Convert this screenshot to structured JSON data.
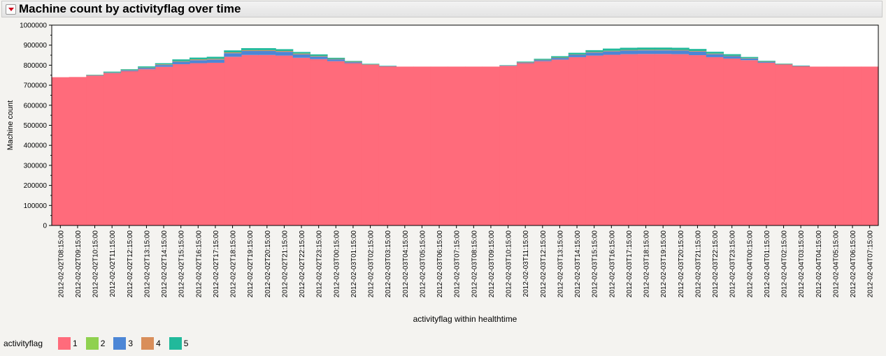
{
  "title": "Machine count by activityflag over time",
  "legend": {
    "title": "activityflag",
    "items": [
      {
        "label": "1",
        "color": "#ff6b7b"
      },
      {
        "label": "2",
        "color": "#8fd14f"
      },
      {
        "label": "3",
        "color": "#4c86d6"
      },
      {
        "label": "4",
        "color": "#d98e5a"
      },
      {
        "label": "5",
        "color": "#21b99b"
      }
    ]
  },
  "chart_data": {
    "type": "area",
    "title": "Machine count by activityflag over time",
    "xlabel": "activityflag within healthtime",
    "ylabel": "Machine count",
    "ylim": [
      0,
      1000000
    ],
    "yticks": [
      "1000000",
      "900000",
      "800000",
      "700000",
      "600000",
      "500000",
      "400000",
      "300000",
      "200000",
      "100000",
      "0"
    ],
    "categories": [
      "2012-02-02T08:15:00",
      "2012-02-02T09:15:00",
      "2012-02-02T10:15:00",
      "2012-02-02T11:15:00",
      "2012-02-02T12:15:00",
      "2012-02-02T13:15:00",
      "2012-02-02T14:15:00",
      "2012-02-02T15:15:00",
      "2012-02-02T16:15:00",
      "2012-02-02T17:15:00",
      "2012-02-02T18:15:00",
      "2012-02-02T19:15:00",
      "2012-02-02T20:15:00",
      "2012-02-02T21:15:00",
      "2012-02-02T22:15:00",
      "2012-02-02T23:15:00",
      "2012-02-03T00:15:00",
      "2012-02-03T01:15:00",
      "2012-02-03T02:15:00",
      "2012-02-03T03:15:00",
      "2012-02-03T04:15:00",
      "2012-02-03T05:15:00",
      "2012-02-03T06:15:00",
      "2012-02-03T07:15:00",
      "2012-02-03T08:15:00",
      "2012-02-03T09:15:00",
      "2012-02-03T10:15:00",
      "2012-02-03T11:15:00",
      "2012-02-03T12:15:00",
      "2012-02-03T13:15:00",
      "2012-02-03T14:15:00",
      "2012-02-03T15:15:00",
      "2012-02-03T16:15:00",
      "2012-02-03T17:15:00",
      "2012-02-03T18:15:00",
      "2012-02-03T19:15:00",
      "2012-02-03T20:15:00",
      "2012-02-03T21:15:00",
      "2012-02-03T22:15:00",
      "2012-02-03T23:15:00",
      "2012-02-04T00:15:00",
      "2012-02-04T01:15:00",
      "2012-02-04T02:15:00",
      "2012-02-04T03:15:00",
      "2012-02-04T04:15:00",
      "2012-02-04T05:15:00",
      "2012-02-04T06:15:00",
      "2012-02-04T07:15:00"
    ],
    "series": [
      {
        "name": "1",
        "color": "#ff6b7b",
        "values": [
          740000,
          741000,
          748000,
          760000,
          770000,
          780000,
          792000,
          805000,
          810000,
          812000,
          842000,
          851000,
          851000,
          848000,
          837000,
          830000,
          820000,
          810000,
          802000,
          795000,
          793000,
          793000,
          793000,
          793000,
          793000,
          793000,
          797000,
          810000,
          820000,
          828000,
          840000,
          848000,
          852000,
          855000,
          856000,
          856000,
          855000,
          850000,
          840000,
          833000,
          825000,
          812000,
          803000,
          796000,
          793000,
          793000,
          793000,
          793000
        ]
      },
      {
        "name": "2",
        "color": "#8fd14f",
        "values": [
          0,
          0,
          0,
          0,
          0,
          0,
          0,
          0,
          0,
          0,
          0,
          0,
          0,
          0,
          0,
          0,
          0,
          0,
          0,
          0,
          0,
          0,
          0,
          0,
          0,
          0,
          0,
          0,
          0,
          0,
          0,
          0,
          0,
          0,
          0,
          0,
          0,
          0,
          0,
          0,
          0,
          0,
          0,
          0,
          0,
          0,
          0,
          0
        ]
      },
      {
        "name": "3",
        "color": "#4c86d6",
        "values": [
          0,
          0,
          2000,
          3000,
          4000,
          6000,
          9000,
          12000,
          15000,
          16000,
          18000,
          20000,
          20000,
          19000,
          17000,
          13000,
          9000,
          5000,
          2000,
          1000,
          0,
          0,
          0,
          0,
          0,
          0,
          2000,
          4000,
          6000,
          8000,
          12000,
          15000,
          17000,
          18000,
          18000,
          18000,
          18000,
          18000,
          15000,
          12000,
          8000,
          5000,
          2000,
          1000,
          0,
          0,
          0,
          0
        ]
      },
      {
        "name": "4",
        "color": "#d98e5a",
        "values": [
          0,
          0,
          1000,
          1000,
          2000,
          2000,
          3000,
          3000,
          4000,
          4000,
          4000,
          4000,
          4000,
          4000,
          4000,
          3000,
          2000,
          2000,
          1000,
          0,
          0,
          0,
          0,
          0,
          0,
          0,
          0,
          1000,
          1000,
          2000,
          2000,
          3000,
          3000,
          3000,
          3000,
          3000,
          3000,
          3000,
          3000,
          2000,
          2000,
          1000,
          1000,
          0,
          0,
          0,
          0,
          0
        ]
      },
      {
        "name": "5",
        "color": "#21b99b",
        "values": [
          0,
          0,
          1000,
          4000,
          4000,
          6000,
          6000,
          9000,
          9000,
          10000,
          10000,
          10000,
          10000,
          9000,
          8000,
          8000,
          6000,
          4000,
          2000,
          1000,
          0,
          0,
          0,
          0,
          0,
          0,
          1000,
          3000,
          5000,
          7000,
          8000,
          9000,
          11000,
          11000,
          11000,
          11000,
          11000,
          10000,
          9000,
          8000,
          6000,
          4000,
          2000,
          1000,
          0,
          0,
          0,
          0
        ]
      }
    ]
  }
}
